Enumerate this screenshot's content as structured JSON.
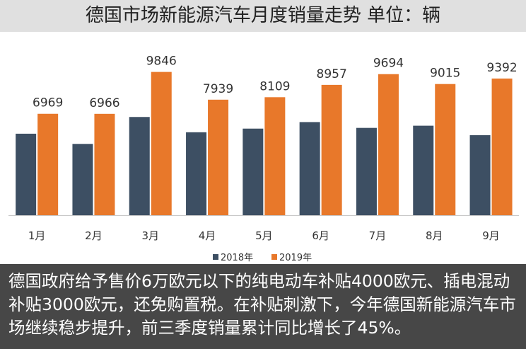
{
  "header": {
    "title": "德国市场新能源汽车月度销量走势  单位：辆"
  },
  "caption": {
    "text": "德国政府给予售价6万欧元以下的纯电动车补贴4000欧元、插电混动补贴3000欧元，还免购置税。在补贴刺激下，今年德国新能源汽车市场继续稳步提升，前三季度销量累计同比增长了45%。"
  },
  "colors": {
    "series_2018": "#3d4f63",
    "series_2019": "#e8782a",
    "background": "#ffffff",
    "title_bar": "#e0e0e0",
    "caption_bg": "#1e1e1e"
  },
  "chart_data": {
    "type": "bar",
    "categories": [
      "1月",
      "2月",
      "3月",
      "4月",
      "5月",
      "6月",
      "7月",
      "8月",
      "9月"
    ],
    "series": [
      {
        "name": "2018年",
        "values": [
          5600,
          4900,
          6750,
          5700,
          5950,
          6400,
          6000,
          6150,
          5500
        ],
        "labels_shown": false
      },
      {
        "name": "2019年",
        "values": [
          6969,
          6966,
          9846,
          7939,
          8109,
          8957,
          9694,
          9015,
          9392
        ],
        "labels_shown": true
      }
    ],
    "title": "德国市场新能源汽车月度销量走势  单位：辆",
    "xlabel": "",
    "ylabel": "",
    "ylim": [
      0,
      12600
    ],
    "grid": false,
    "legend": "bottom"
  }
}
